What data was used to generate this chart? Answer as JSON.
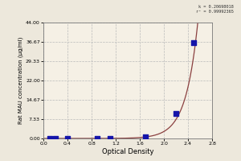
{
  "xlabel": "Optical Density",
  "ylabel": "Rat MAU concentration (μg/ml)",
  "x_data": [
    0.1,
    0.2,
    0.4,
    0.9,
    1.1,
    1.7,
    2.2,
    2.5
  ],
  "y_data": [
    0.0,
    0.0,
    0.0,
    0.0,
    0.1,
    0.55,
    9.5,
    36.5
  ],
  "xlim": [
    0.0,
    2.8
  ],
  "ylim": [
    0.0,
    44.0
  ],
  "xticks": [
    0.0,
    0.4,
    0.8,
    1.2,
    1.6,
    2.0,
    2.4,
    2.8
  ],
  "yticks": [
    0.0,
    7.33,
    14.67,
    22.0,
    29.33,
    36.67,
    44.0
  ],
  "ytick_labels": [
    "0.00",
    "7.33",
    "14.67",
    "22.00",
    "29.33",
    "36.67",
    "44.00"
  ],
  "curve_color": "#8B4040",
  "marker_color": "#1515AA",
  "annotation_text": "k = 0.20698018\nr² = 0.99992365",
  "bg_color": "#F5F0E5",
  "grid_color": "#BBBBBB",
  "figure_bg": "#EDE8DC",
  "curve_a": 0.00012,
  "curve_b": 5.0
}
